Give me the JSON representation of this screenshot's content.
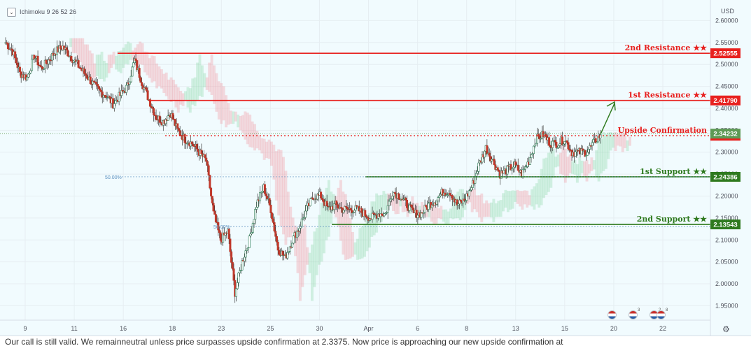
{
  "toolbar": {
    "indicator": "Ichimoku 9 26 52 26",
    "currency": "USD",
    "settings_icon": "gear-icon"
  },
  "caption": "Our call is still valid. We remainneutral unless price surpasses upside confirmation at 2.3375. Now price is approaching our new upside confirmation at",
  "event_flags": [
    {
      "icon": "us-flag-icon",
      "count": ""
    },
    {
      "icon": "us-flag-icon",
      "count": "3"
    },
    {
      "icon": "us-flag-icon",
      "count": "2"
    },
    {
      "icon": "us-flag-icon",
      "count": "8"
    }
  ],
  "chart_data": {
    "type": "candlestick",
    "ylim": [
      1.93,
      2.615
    ],
    "y_ticks": [
      "2.60000",
      "2.55000",
      "2.50000",
      "2.45000",
      "2.40000",
      "2.35000",
      "2.30000",
      "2.25000",
      "2.20000",
      "2.15000",
      "2.10000",
      "2.05000",
      "2.00000",
      "1.95000"
    ],
    "x_ticks": [
      "9",
      "11",
      "16",
      "18",
      "23",
      "25",
      "30",
      "Apr",
      "6",
      "8",
      "13",
      "15",
      "20",
      "22"
    ],
    "levels": [
      {
        "name": "2nd Resistance ★★",
        "value": "2.52555",
        "price": 2.52555,
        "color": "#e8211f",
        "style": "solid"
      },
      {
        "name": "1st Resistance ★★",
        "value": "2.41790",
        "price": 2.4179,
        "color": "#e8211f",
        "style": "solid"
      },
      {
        "name": "Upside Confirmation",
        "value": "2.33750",
        "price": 2.3375,
        "color": "#e8211f",
        "style": "dotted"
      },
      {
        "name": "1st Support ★★",
        "value": "2.24386",
        "price": 2.24386,
        "color": "#2f7a1f",
        "style": "solid"
      },
      {
        "name": "2nd Support ★★",
        "value": "2.13543",
        "price": 2.13543,
        "color": "#2f7a1f",
        "style": "solid"
      }
    ],
    "last_price": {
      "value": "2.34232",
      "price": 2.34232,
      "color": "#5d9a55"
    },
    "fib_labels": [
      {
        "text": "50.00%",
        "price": 2.2439
      },
      {
        "text": "50.00%",
        "price": 2.1305
      }
    ],
    "closes": [
      2.55,
      2.53,
      2.48,
      2.47,
      2.52,
      2.49,
      2.51,
      2.53,
      2.54,
      2.52,
      2.5,
      2.48,
      2.46,
      2.44,
      2.43,
      2.41,
      2.43,
      2.45,
      2.51,
      2.46,
      2.42,
      2.38,
      2.37,
      2.39,
      2.35,
      2.33,
      2.32,
      2.3,
      2.28,
      2.16,
      2.1,
      2.12,
      1.98,
      2.05,
      2.1,
      2.18,
      2.22,
      2.17,
      2.08,
      2.06,
      2.1,
      2.13,
      2.17,
      2.2,
      2.2,
      2.17,
      2.18,
      2.17,
      2.17,
      2.17,
      2.16,
      2.15,
      2.16,
      2.16,
      2.21,
      2.2,
      2.18,
      2.16,
      2.16,
      2.18,
      2.19,
      2.21,
      2.21,
      2.18,
      2.19,
      2.22,
      2.27,
      2.31,
      2.28,
      2.25,
      2.26,
      2.27,
      2.25,
      2.28,
      2.33,
      2.34,
      2.32,
      2.32,
      2.33,
      2.3,
      2.3,
      2.3,
      2.32,
      2.34
    ]
  }
}
